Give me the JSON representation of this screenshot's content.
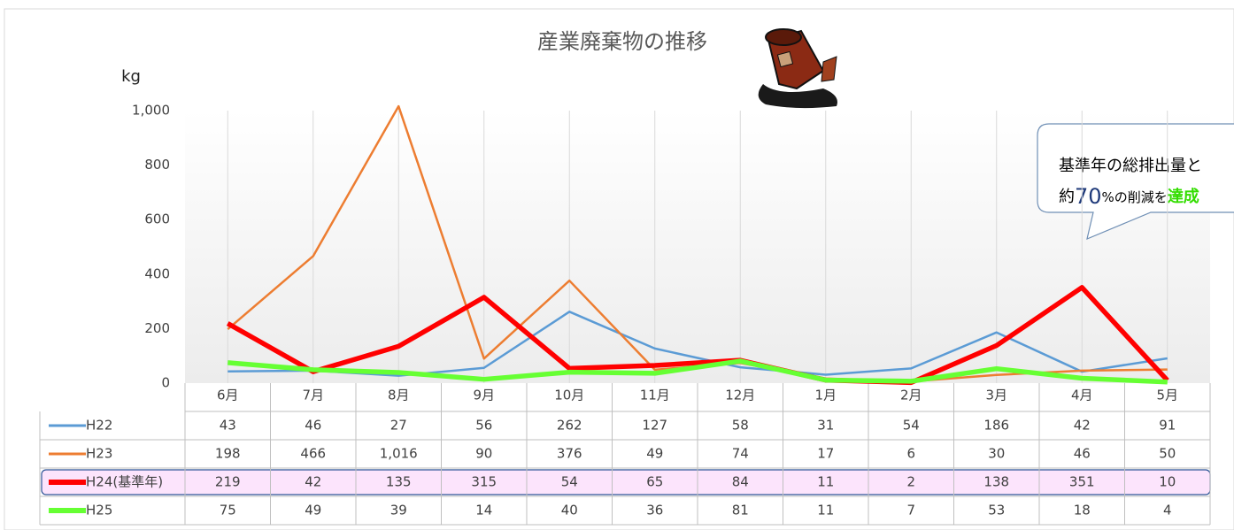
{
  "chart_data": {
    "type": "line",
    "title": "産業廃棄物の推移",
    "y_label": "kg",
    "categories": [
      "6月",
      "7月",
      "8月",
      "9月",
      "10月",
      "11月",
      "12月",
      "1月",
      "2月",
      "3月",
      "4月",
      "5月"
    ],
    "series": [
      {
        "name": "H22",
        "color": "#5b9bd5",
        "values": [
          43,
          46,
          27,
          56,
          262,
          127,
          58,
          31,
          54,
          186,
          42,
          91
        ]
      },
      {
        "name": "H23",
        "color": "#ed7d31",
        "values": [
          198,
          466,
          1016,
          90,
          376,
          49,
          74,
          17,
          6,
          30,
          46,
          50
        ],
        "value_labels": [
          "198",
          "466",
          "1,016",
          "90",
          "376",
          "49",
          "74",
          "17",
          "6",
          "30",
          "46",
          "50"
        ]
      },
      {
        "name": "H24(基準年)",
        "color": "#ff0000",
        "values": [
          219,
          42,
          135,
          315,
          54,
          65,
          84,
          11,
          2,
          138,
          351,
          10
        ]
      },
      {
        "name": "H25",
        "color": "#66ff33",
        "values": [
          75,
          49,
          39,
          14,
          40,
          36,
          81,
          11,
          7,
          53,
          18,
          4
        ]
      }
    ],
    "ylim": [
      0,
      1000
    ],
    "yticks": [
      0,
      200,
      400,
      600,
      800,
      {
        "value": 1000,
        "label": "1,000"
      }
    ],
    "grid": true,
    "annotation": {
      "line1": "基準年の総排出量と",
      "prefix": "約",
      "number": "70",
      "middle": "%の削減を",
      "highlight": "達成"
    }
  }
}
